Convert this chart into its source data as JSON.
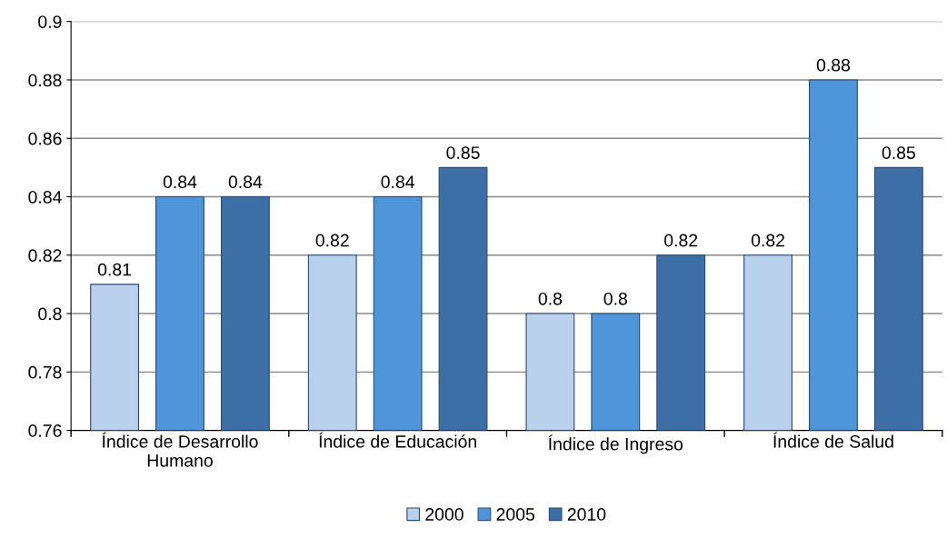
{
  "chart_data": {
    "type": "bar",
    "categories": [
      "Índice de Desarrollo\nHumano",
      "Índice de Educación",
      "Índice de Ingreso",
      "Índice de Salud"
    ],
    "series": [
      {
        "name": "2000",
        "color": "#b9d1ec",
        "values": [
          0.81,
          0.82,
          0.8,
          0.82
        ]
      },
      {
        "name": "2005",
        "color": "#4f95da",
        "values": [
          0.84,
          0.84,
          0.8,
          0.88
        ]
      },
      {
        "name": "2010",
        "color": "#3d6fa6",
        "values": [
          0.84,
          0.85,
          0.82,
          0.85
        ]
      }
    ],
    "ylim": [
      0.76,
      0.9
    ],
    "yticks": [
      0.76,
      0.78,
      0.8,
      0.82,
      0.84,
      0.86,
      0.88,
      0.9
    ],
    "grid": "y",
    "legend": "bottom",
    "data_labels": true
  }
}
